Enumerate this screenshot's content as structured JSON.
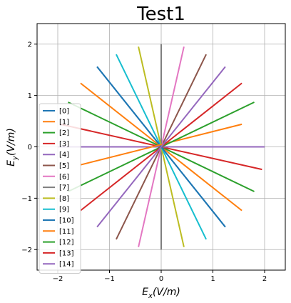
{
  "chart_data": {
    "type": "line",
    "title": "Test1",
    "xlabel": "E_x(V/m)",
    "ylabel": "E_y(V/m)",
    "xlim": [
      -2.4,
      2.4
    ],
    "ylim": [
      -2.4,
      2.4
    ],
    "xticks": [
      -2,
      -1,
      0,
      1,
      2
    ],
    "yticks": [
      -2,
      -1,
      0,
      1,
      2
    ],
    "xtick_labels": [
      "−2",
      "−1",
      "0",
      "1",
      "2"
    ],
    "ytick_labels": [
      "−2",
      "−1",
      "0",
      "1",
      "2"
    ],
    "grid": true,
    "legend_position": "left",
    "series": [
      {
        "name": "[0]",
        "color": "#1f77b4",
        "x": [
          -1.24,
          1.24
        ],
        "y": [
          1.56,
          -1.56
        ]
      },
      {
        "name": "[1]",
        "color": "#ff7f0e",
        "x": [
          -1.56,
          1.56
        ],
        "y": [
          1.24,
          -1.24
        ]
      },
      {
        "name": "[2]",
        "color": "#2ca02c",
        "x": [
          -1.8,
          1.8
        ],
        "y": [
          0.87,
          -0.87
        ]
      },
      {
        "name": "[3]",
        "color": "#d62728",
        "x": [
          -1.95,
          1.95
        ],
        "y": [
          0.44,
          -0.44
        ]
      },
      {
        "name": "[4]",
        "color": "#9467bd",
        "x": [
          -2.0,
          2.0
        ],
        "y": [
          0.0,
          0.0
        ]
      },
      {
        "name": "[5]",
        "color": "#8c564b",
        "x": [
          -0.87,
          0.87
        ],
        "y": [
          -1.8,
          1.8
        ]
      },
      {
        "name": "[6]",
        "color": "#e377c2",
        "x": [
          -0.44,
          0.44
        ],
        "y": [
          -1.95,
          1.95
        ]
      },
      {
        "name": "[7]",
        "color": "#7f7f7f",
        "x": [
          0.0,
          0.0
        ],
        "y": [
          -2.0,
          2.0
        ]
      },
      {
        "name": "[8]",
        "color": "#bcbd22",
        "x": [
          -0.44,
          0.44
        ],
        "y": [
          1.95,
          -1.95
        ]
      },
      {
        "name": "[9]",
        "color": "#17becf",
        "x": [
          -0.87,
          0.87
        ],
        "y": [
          1.8,
          -1.8
        ]
      },
      {
        "name": "[10]",
        "color": "#1f77b4",
        "x": [
          -1.24,
          1.24
        ],
        "y": [
          1.56,
          -1.56
        ]
      },
      {
        "name": "[11]",
        "color": "#ff7f0e",
        "x": [
          -1.56,
          1.56
        ],
        "y": [
          -0.35,
          0.44
        ]
      },
      {
        "name": "[12]",
        "color": "#2ca02c",
        "x": [
          -1.8,
          1.8
        ],
        "y": [
          -0.87,
          0.87
        ]
      },
      {
        "name": "[13]",
        "color": "#d62728",
        "x": [
          -1.56,
          1.56
        ],
        "y": [
          -1.24,
          1.24
        ]
      },
      {
        "name": "[14]",
        "color": "#9467bd",
        "x": [
          -1.24,
          1.24
        ],
        "y": [
          -1.56,
          1.56
        ]
      }
    ]
  }
}
